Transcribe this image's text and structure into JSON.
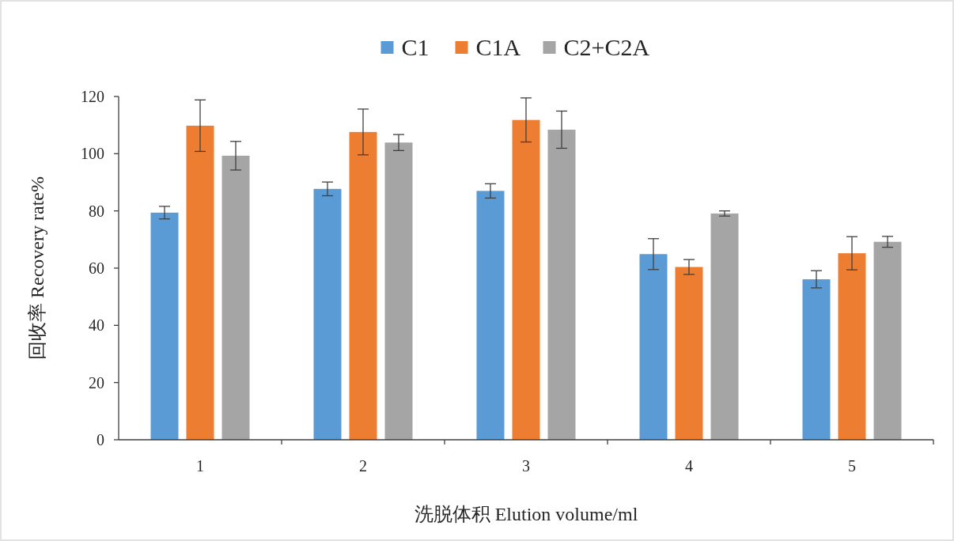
{
  "chart_data": {
    "type": "bar",
    "xlabel": "洗脱体积 Elution volume/ml",
    "ylabel": "回收率 Recovery rate%",
    "categories": [
      "1",
      "2",
      "3",
      "4",
      "5"
    ],
    "series": [
      {
        "name": "C1",
        "color": "#5b9bd5",
        "values": [
          79.4,
          87.7,
          87.0,
          64.9,
          56.1
        ],
        "errors": [
          2.2,
          2.4,
          2.5,
          5.4,
          3.0
        ]
      },
      {
        "name": "C1A",
        "color": "#ed7d31",
        "values": [
          109.8,
          107.6,
          111.8,
          60.4,
          65.2
        ],
        "errors": [
          9.0,
          8.0,
          7.7,
          2.6,
          5.8
        ]
      },
      {
        "name": "C2+C2A",
        "color": "#a5a5a5",
        "values": [
          99.3,
          103.9,
          108.4,
          79.1,
          69.2
        ],
        "errors": [
          5.0,
          2.8,
          6.5,
          0.9,
          1.9
        ]
      }
    ],
    "ylim": [
      0,
      120
    ],
    "yticks": [
      0,
      20,
      40,
      60,
      80,
      100,
      120
    ],
    "grid": false,
    "legend": "top"
  }
}
